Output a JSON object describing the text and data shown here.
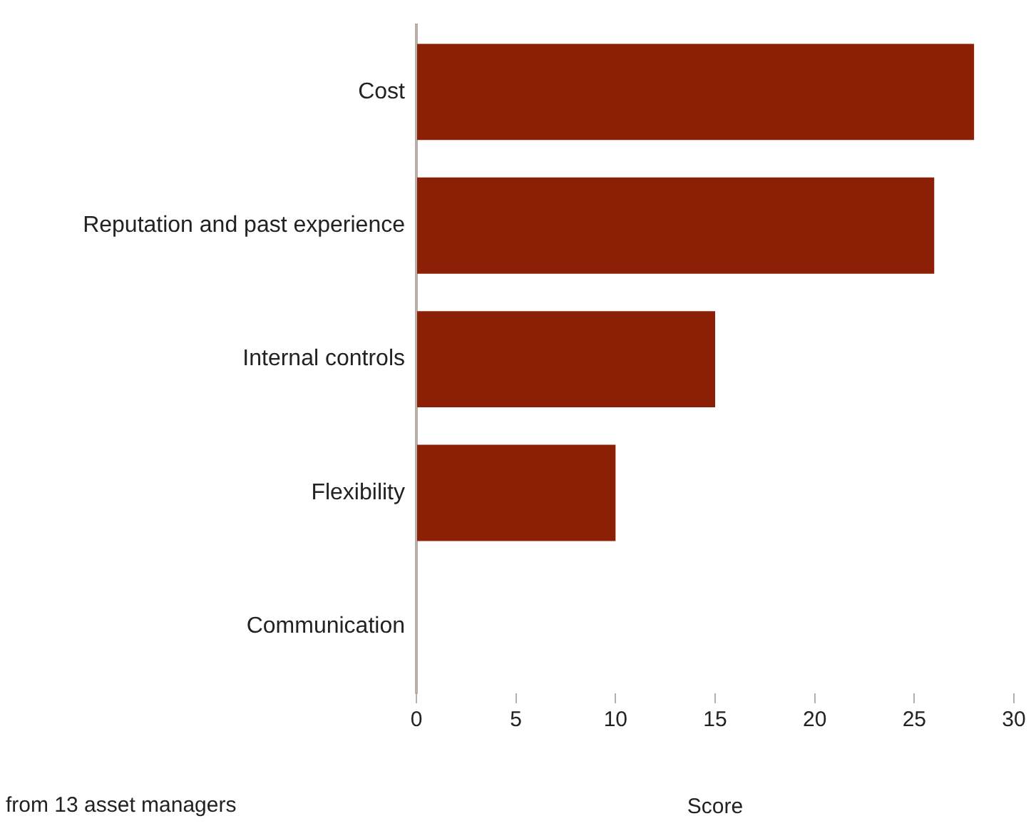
{
  "chart_data": {
    "type": "bar",
    "orientation": "horizontal",
    "categories": [
      "Cost",
      "Reputation and past experience",
      "Internal controls",
      "Flexibility",
      "Communication"
    ],
    "values": [
      28,
      26,
      15,
      10,
      0
    ],
    "color": "#8b2006",
    "xlim": [
      0,
      30
    ],
    "xticks": [
      0,
      5,
      10,
      15,
      20,
      25,
      30
    ],
    "xlabel": "Score",
    "grid": false,
    "legend": false,
    "annotations": [
      "from 13 asset managers"
    ]
  }
}
